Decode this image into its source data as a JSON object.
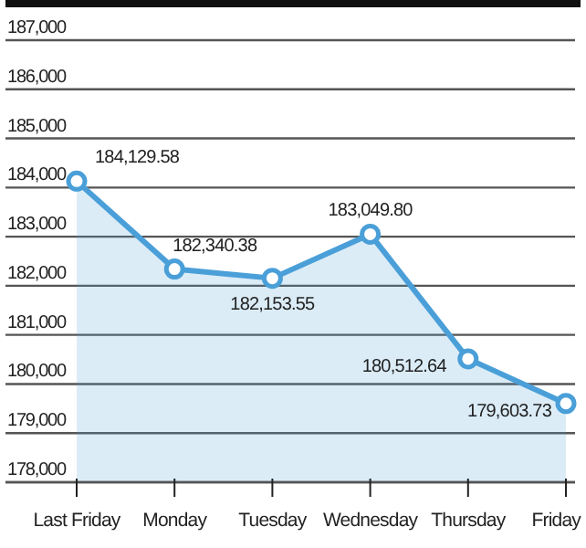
{
  "chart_data": {
    "type": "area",
    "categories": [
      "Last Friday",
      "Monday",
      "Tuesday",
      "Wednesday",
      "Thursday",
      "Friday"
    ],
    "series": [
      {
        "color": "#4a9fd8",
        "values": [
          184129.58,
          182340.38,
          182153.55,
          183049.8,
          180512.64,
          179603.73
        ],
        "value_labels": [
          "184,129.58",
          "182,340.38",
          "182,153.55",
          "183,049.80",
          "180,512.64",
          "179,603.73"
        ]
      }
    ],
    "ylim": [
      178000,
      187000
    ],
    "yticks": [
      {
        "value": 178000,
        "label": "178,000"
      },
      {
        "value": 179000,
        "label": "179,000"
      },
      {
        "value": 180000,
        "label": "180,000"
      },
      {
        "value": 181000,
        "label": "181,000"
      },
      {
        "value": 182000,
        "label": "182,000"
      },
      {
        "value": 183000,
        "label": "183,000"
      },
      {
        "value": 184000,
        "label": "184,000"
      },
      {
        "value": 185000,
        "label": "185,000"
      },
      {
        "value": 186000,
        "label": "186,000"
      },
      {
        "value": 187000,
        "label": "187,000"
      }
    ],
    "grid": "y",
    "marker": "circle"
  }
}
